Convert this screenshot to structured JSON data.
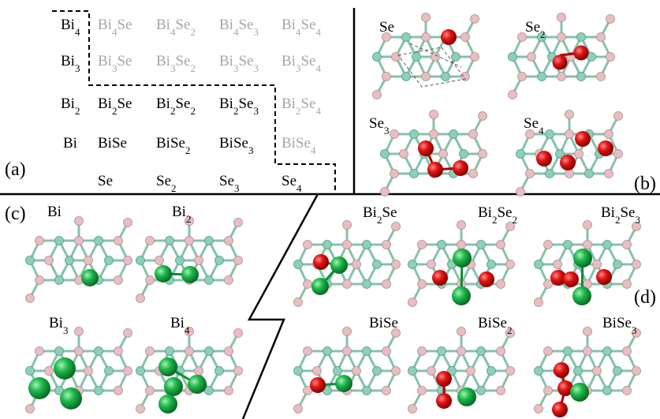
{
  "table": {
    "rows": [
      [
        "Bi4",
        "Bi4Se",
        "Bi4Se2",
        "Bi4Se3",
        "Bi4Se4"
      ],
      [
        "Bi3",
        "Bi3Se",
        "Bi3Se2",
        "Bi3Se3",
        "Bi3Se4"
      ],
      [
        "Bi2",
        "Bi2Se",
        "Bi2Se2",
        "Bi2Se3",
        "Bi2Se4"
      ],
      [
        "Bi",
        "BiSe",
        "BiSe2",
        "BiSe3",
        "BiSe4"
      ]
    ],
    "bottom_labels": [
      "Se",
      "Se2",
      "Se3",
      "Se4"
    ],
    "grey_cells": [
      [
        0,
        1
      ],
      [
        0,
        2
      ],
      [
        0,
        3
      ],
      [
        0,
        4
      ],
      [
        1,
        1
      ],
      [
        1,
        2
      ],
      [
        1,
        3
      ],
      [
        1,
        4
      ],
      [
        2,
        4
      ],
      [
        3,
        4
      ]
    ]
  },
  "panel_labels": {
    "a": "(a)",
    "b": "(b)",
    "c": "(c)",
    "d": "(d)"
  },
  "panel_b": {
    "clusters": [
      "Se",
      "Se2",
      "Se3",
      "Se4"
    ]
  },
  "panel_c": {
    "clusters": [
      "Bi",
      "Bi2",
      "Bi3",
      "Bi4"
    ]
  },
  "panel_d": {
    "clusters": [
      "Bi2Se",
      "Bi2Se2",
      "Bi2Se3",
      "BiSe",
      "BiSe2",
      "BiSe3"
    ]
  },
  "colors": {
    "se_atom": "#e01515",
    "bi_atom": "#1db84a",
    "substrate_pink": "#e7bfc2",
    "substrate_teal": "#8ecfb8"
  }
}
